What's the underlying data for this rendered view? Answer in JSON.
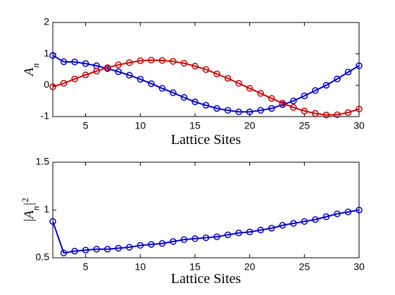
{
  "chart_data": [
    {
      "type": "line",
      "x_label": "Lattice Sites",
      "y_label": [
        "A",
        "n"
      ],
      "x": [
        2,
        3,
        4,
        5,
        6,
        7,
        8,
        9,
        10,
        11,
        12,
        13,
        14,
        15,
        16,
        17,
        18,
        19,
        20,
        21,
        22,
        23,
        24,
        25,
        26,
        27,
        28,
        29,
        30
      ],
      "xlim": [
        2,
        30
      ],
      "xticks": [
        5,
        10,
        15,
        20,
        25,
        30
      ],
      "ylim": [
        -1,
        2
      ],
      "yticks": [
        -1,
        0,
        1,
        2
      ],
      "series": [
        {
          "color": "#0000cc",
          "values": [
            0.95,
            0.75,
            0.74,
            0.69,
            0.62,
            0.53,
            0.43,
            0.32,
            0.19,
            0.05,
            -0.1,
            -0.24,
            -0.39,
            -0.53,
            -0.64,
            -0.74,
            -0.8,
            -0.85,
            -0.85,
            -0.8,
            -0.74,
            -0.62,
            -0.5,
            -0.34,
            -0.17,
            0,
            0.2,
            0.42,
            0.62
          ]
        },
        {
          "color": "#cc0000",
          "values": [
            -0.05,
            0.06,
            0.2,
            0.33,
            0.45,
            0.56,
            0.65,
            0.72,
            0.78,
            0.8,
            0.79,
            0.76,
            0.7,
            0.61,
            0.5,
            0.36,
            0.22,
            0.06,
            -0.1,
            -0.26,
            -0.42,
            -0.57,
            -0.71,
            -0.82,
            -0.9,
            -0.95,
            -0.94,
            -0.87,
            -0.76
          ]
        }
      ]
    },
    {
      "type": "line",
      "x_label": "Lattice Sites",
      "y_label": [
        "|A",
        "n",
        "|",
        "2"
      ],
      "x": [
        2,
        3,
        4,
        5,
        6,
        7,
        8,
        9,
        10,
        11,
        12,
        13,
        14,
        15,
        16,
        17,
        18,
        19,
        20,
        21,
        22,
        23,
        24,
        25,
        26,
        27,
        28,
        29,
        30
      ],
      "xlim": [
        2,
        30
      ],
      "xticks": [
        5,
        10,
        15,
        20,
        25,
        30
      ],
      "ylim": [
        0.5,
        1.5
      ],
      "yticks": [
        0.5,
        1,
        1.5
      ],
      "series": [
        {
          "color": "#0000cc",
          "values": [
            0.88,
            0.55,
            0.57,
            0.58,
            0.59,
            0.59,
            0.6,
            0.61,
            0.63,
            0.64,
            0.65,
            0.67,
            0.69,
            0.7,
            0.71,
            0.72,
            0.74,
            0.76,
            0.77,
            0.79,
            0.81,
            0.84,
            0.86,
            0.88,
            0.9,
            0.93,
            0.96,
            0.98,
            1.0
          ]
        }
      ]
    }
  ]
}
